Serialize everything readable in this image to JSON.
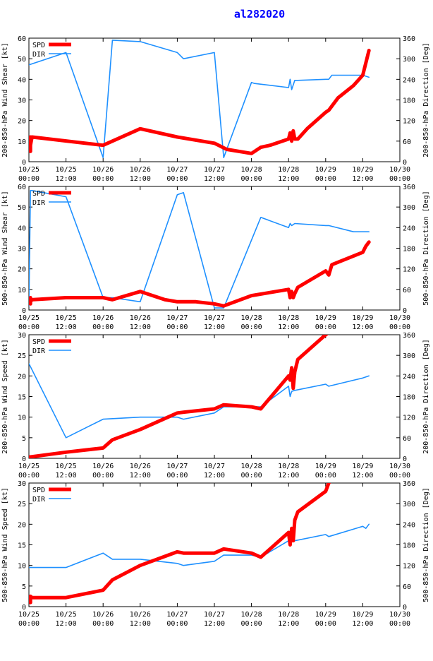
{
  "title": "al282020",
  "colors": {
    "spd": "#ff0000",
    "dir": "#1e90ff",
    "axis": "#000000",
    "title": "#0000ff"
  },
  "x_ticks": [
    "10/25\n00:00",
    "10/25\n12:00",
    "10/26\n00:00",
    "10/26\n12:00",
    "10/27\n00:00",
    "10/27\n12:00",
    "10/28\n00:00",
    "10/28\n12:00",
    "10/29\n00:00",
    "10/29\n12:00",
    "10/30\n00:00"
  ],
  "chart_data": [
    {
      "type": "line",
      "title": "",
      "xlabel": "",
      "ylabel": "200-850-hPa Wind Shear [kt]",
      "y2label": "200-850-hPa Direction [Deg]",
      "xlim_hours": [
        0,
        120
      ],
      "ylim": [
        0,
        60
      ],
      "y_ticks": [
        "0",
        "10",
        "20",
        "30",
        "40",
        "50",
        "60"
      ],
      "y2lim": [
        0,
        360
      ],
      "y2_ticks": [
        "0",
        "60",
        "120",
        "180",
        "240",
        "300",
        "360"
      ],
      "legend": {
        "placement": "top-left",
        "entries": [
          "SPD",
          "DIR"
        ]
      },
      "series": [
        {
          "name": "SPD",
          "axis": "left",
          "x": [
            0.5,
            0.5,
            0.5,
            1,
            24,
            36,
            48,
            60,
            64,
            72,
            75,
            78,
            84,
            84.5,
            85,
            85.5,
            86,
            87,
            90,
            96,
            97,
            100,
            105,
            108,
            110
          ],
          "y": [
            5,
            12,
            8,
            12,
            8,
            16,
            12,
            9,
            6,
            4,
            7,
            8,
            11,
            14,
            10,
            15,
            11,
            11,
            16,
            24,
            25,
            31,
            37,
            42,
            54
          ]
        },
        {
          "name": "DIR",
          "axis": "left2",
          "x": [
            0,
            12,
            24,
            27,
            36,
            48,
            50,
            60,
            63,
            72,
            73,
            84,
            84.5,
            85,
            86,
            87,
            96,
            97,
            98,
            108,
            110
          ],
          "y": [
            282,
            318,
            12,
            354,
            350,
            318,
            300,
            318,
            12,
            231,
            228,
            216,
            240,
            210,
            237,
            237,
            240,
            240,
            252,
            252,
            246
          ]
        }
      ]
    },
    {
      "type": "line",
      "title": "",
      "xlabel": "",
      "ylabel": "500-850-hPa Wind Shear [kt]",
      "y2label": "500-850-hPa Direction [Deg]",
      "xlim_hours": [
        0,
        120
      ],
      "ylim": [
        0,
        60
      ],
      "y_ticks": [
        "0",
        "10",
        "20",
        "30",
        "40",
        "50",
        "60"
      ],
      "y2lim": [
        0,
        360
      ],
      "y2_ticks": [
        "0",
        "60",
        "120",
        "180",
        "240",
        "300",
        "360"
      ],
      "legend": {
        "placement": "top-left",
        "entries": [
          "SPD",
          "DIR"
        ]
      },
      "series": [
        {
          "name": "SPD",
          "axis": "left",
          "x": [
            0.5,
            0.5,
            0.5,
            1,
            12,
            24,
            27,
            36,
            44,
            48,
            54,
            60,
            63,
            72,
            84,
            84.5,
            85,
            85.5,
            86,
            87,
            96,
            97,
            98,
            108,
            109,
            110
          ],
          "y": [
            3,
            6,
            4,
            5,
            6,
            6,
            5,
            9,
            5,
            4,
            4,
            3,
            2,
            7,
            10,
            6,
            9,
            6,
            8,
            11,
            19,
            17,
            22,
            28,
            31,
            33
          ]
        },
        {
          "name": "DIR",
          "axis": "left2",
          "x": [
            0,
            0.5,
            1,
            12,
            24,
            27,
            36,
            48,
            50,
            60,
            63,
            75,
            84,
            84.5,
            85,
            86,
            96,
            97,
            105,
            108,
            110
          ],
          "y": [
            12,
            348,
            348,
            330,
            36,
            36,
            24,
            336,
            342,
            6,
            6,
            270,
            240,
            252,
            246,
            252,
            246,
            246,
            228,
            228,
            228
          ]
        }
      ]
    },
    {
      "type": "line",
      "title": "",
      "xlabel": "",
      "ylabel": "200-850-hPa Wind Speed [kt]",
      "y2label": "200-850-hPa Direction [Deg]",
      "xlim_hours": [
        0,
        120
      ],
      "ylim": [
        0,
        30
      ],
      "y_ticks": [
        "0",
        "5",
        "10",
        "15",
        "20",
        "25",
        "30"
      ],
      "y2lim": [
        0,
        360
      ],
      "y2_ticks": [
        "0",
        "60",
        "120",
        "180",
        "240",
        "300",
        "360"
      ],
      "legend": {
        "placement": "top-left",
        "entries": [
          "SPD",
          "DIR"
        ]
      },
      "series": [
        {
          "name": "SPD",
          "axis": "left",
          "x": [
            0,
            12,
            24,
            27,
            36,
            48,
            50,
            60,
            63,
            72,
            75,
            84,
            84.5,
            85,
            85.5,
            86,
            87,
            96,
            97
          ],
          "y": [
            0.3,
            1.5,
            2.5,
            4.5,
            7,
            11,
            11.2,
            12,
            13,
            12.5,
            12,
            20,
            19,
            22,
            17,
            21,
            24,
            30,
            30.5
          ]
        },
        {
          "name": "DIR",
          "axis": "left2",
          "x": [
            0,
            12,
            24,
            36,
            48,
            50,
            60,
            63,
            72,
            75,
            84,
            84.5,
            85,
            86,
            96,
            97,
            108,
            110
          ],
          "y": [
            276,
            60,
            114,
            120,
            120,
            114,
            132,
            150,
            150,
            150,
            210,
            180,
            195,
            198,
            216,
            210,
            234,
            240
          ]
        }
      ]
    },
    {
      "type": "line",
      "title": "",
      "xlabel": "",
      "ylabel": "500-850-hPa Wind Speed [kt]",
      "y2label": "500-850-hPa Direction [Deg]",
      "xlim_hours": [
        0,
        120
      ],
      "ylim": [
        0,
        30
      ],
      "y_ticks": [
        "0",
        "5",
        "10",
        "15",
        "20",
        "25",
        "30"
      ],
      "y2lim": [
        0,
        360
      ],
      "y2_ticks": [
        "0",
        "60",
        "120",
        "180",
        "240",
        "300",
        "360"
      ],
      "legend": {
        "placement": "top-left",
        "entries": [
          "SPD",
          "DIR"
        ]
      },
      "series": [
        {
          "name": "SPD",
          "axis": "left",
          "x": [
            0.5,
            0.5,
            1,
            12,
            24,
            27,
            36,
            48,
            50,
            60,
            63,
            72,
            75,
            84,
            84.5,
            85,
            85.5,
            86,
            87,
            96,
            97,
            98
          ],
          "y": [
            1,
            2.5,
            2.2,
            2.2,
            4,
            6.5,
            10,
            13.3,
            13,
            13,
            14,
            13,
            12,
            18,
            15,
            19,
            16,
            21,
            23,
            28,
            30,
            31
          ]
        },
        {
          "name": "DIR",
          "axis": "left2",
          "x": [
            0,
            12,
            24,
            27,
            36,
            48,
            50,
            60,
            63,
            72,
            75,
            84,
            84.5,
            85,
            86,
            96,
            97,
            108,
            109,
            110
          ],
          "y": [
            114,
            114,
            156,
            138,
            138,
            126,
            120,
            132,
            150,
            150,
            144,
            192,
            180,
            198,
            192,
            210,
            204,
            234,
            228,
            240
          ]
        }
      ]
    }
  ]
}
